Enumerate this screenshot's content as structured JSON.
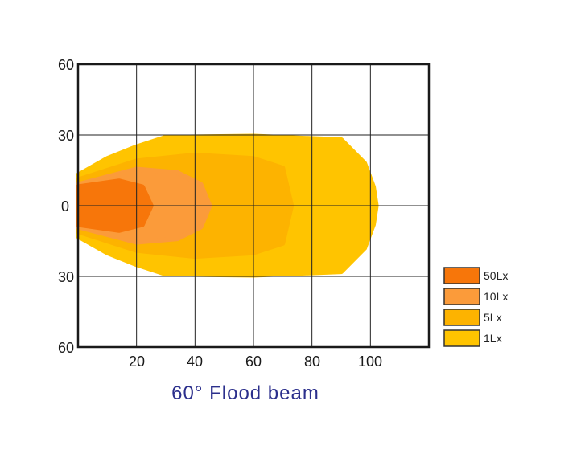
{
  "chart_data": {
    "type": "area",
    "title": "60° Flood beam",
    "x_ticks": [
      "20",
      "40",
      "60",
      "80",
      "100"
    ],
    "y_ticks": [
      "60",
      "30",
      "0",
      "30",
      "60"
    ],
    "xlim": [
      0,
      120
    ],
    "ylim": [
      -60,
      60
    ],
    "grid": true,
    "legend_position": "right",
    "series": [
      {
        "name": "1Lx",
        "color": "#FFC400",
        "x": [
          0,
          10,
          20,
          30,
          60,
          90,
          98,
          101,
          102,
          101,
          98,
          90,
          60,
          30,
          20,
          10,
          0
        ],
        "y": [
          13,
          20,
          25,
          29,
          29.5,
          28,
          18,
          8,
          0,
          -8,
          -18,
          -28,
          -29.5,
          -29,
          -25,
          -20,
          -13
        ]
      },
      {
        "name": "5Lx",
        "color": "#FDB300",
        "x": [
          0,
          20,
          40,
          60,
          70,
          73,
          70,
          60,
          40,
          20,
          0
        ],
        "y": [
          11,
          19,
          21.5,
          20,
          16,
          0,
          -16,
          -20,
          -21.5,
          -19,
          -11
        ]
      },
      {
        "name": "10Lx",
        "color": "#FB9B3A",
        "x": [
          0,
          20,
          34,
          42,
          45,
          42,
          34,
          20,
          0
        ],
        "y": [
          9,
          15.5,
          14,
          9,
          0,
          -9,
          -14,
          -15.5,
          -9
        ]
      },
      {
        "name": "50Lx",
        "color": "#F7760A",
        "x": [
          0,
          14,
          22,
          25,
          22,
          14,
          0
        ],
        "y": [
          8,
          10.5,
          8,
          0,
          -8,
          -10.5,
          -8
        ]
      }
    ]
  },
  "legend": [
    {
      "label": "50Lx",
      "color": "#F7760A"
    },
    {
      "label": "10Lx",
      "color": "#FB9B3A"
    },
    {
      "label": "5Lx",
      "color": "#FDB300"
    },
    {
      "label": "1Lx",
      "color": "#FFC400"
    }
  ]
}
